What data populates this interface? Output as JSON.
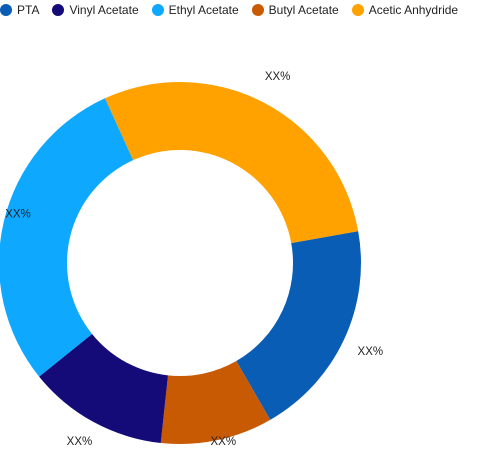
{
  "chart_data": {
    "type": "pie",
    "variant": "donut",
    "title": "",
    "categories": [
      "PTA",
      "Vinyl Acetate",
      "Ethyl Acetate",
      "Butyl Acetate",
      "Acetic Anhydride"
    ],
    "series": [
      {
        "values": [
          19.5,
          12.5,
          29,
          10,
          29
        ]
      }
    ],
    "colors": [
      "#0a5db5",
      "#140a78",
      "#0ea8ff",
      "#c85a04",
      "#ffa200"
    ],
    "slice_order_clockwise_from_top": [
      "Acetic Anhydride",
      "PTA",
      "Butyl Acetate",
      "Vinyl Acetate",
      "Ethyl Acetate"
    ],
    "data_labels": {
      "Acetic Anhydride": "XX%",
      "PTA": "XX%",
      "Butyl Acetate": "XX%",
      "Vinyl Acetate": "XX%",
      "Ethyl Acetate": "XX%"
    },
    "legend_position": "top-left",
    "grid": false
  }
}
